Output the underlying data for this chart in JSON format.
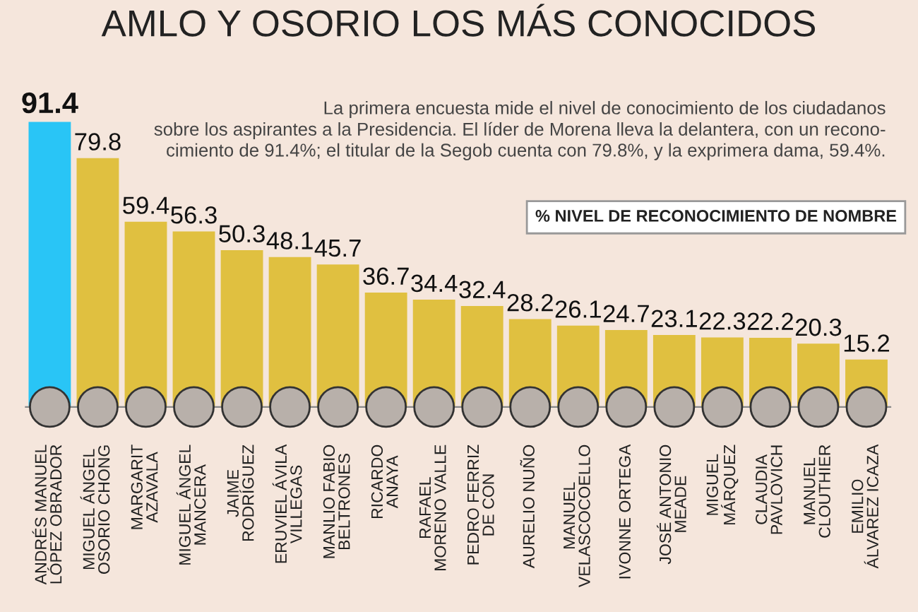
{
  "chart_data": {
    "type": "bar",
    "title": "AMLO Y OSORIO LOS MÁS CONOCIDOS",
    "subtitle": "La primera encuesta mide el nivel de conocimiento de los ciudadanos\nsobre los aspirantes a la Presidencia. El líder de Morena lleva la delantera, con un recono-\ncimiento de 91.4%; el titular de la Segob cuenta con 79.8%, y la exprimera dama, 59.4%.",
    "annotations": [
      "% NIVEL DE RECONOCIMIENTO DE NOMBRE"
    ],
    "categories": [
      "ANDRÉS MANUEL\nLÓPEZ OBRADOR",
      "MIGUEL ÁNGEL\nOSORIO CHONG",
      "MARGARIT\nAZAVALA",
      "MIGUEL ÁNGEL\nMANCERA",
      "JAIME\nRODRÍGUEZ",
      "ERUVIEL ÁVILA\nVILLEGAS",
      "MANLIO FABIO\nBELTRONES",
      "RICARDO\nANAYA",
      "RAFAEL\nMORENO VALLE",
      "PEDRO FERRIZ\nDE CON",
      "AURELIO NUÑO",
      "MANUEL\nVELASCOCOELLO",
      "IVONNE ORTEGA",
      "JOSÉ ANTONIO\nMEADE",
      "MIGUEL\nMÁRQUEZ",
      "CLAUDIA\nPAVLOVICH",
      "MANUEL\nCLOUTHIER",
      "EMILIO\nÁLVAREZ ICAZA"
    ],
    "values": [
      91.4,
      79.8,
      59.4,
      56.3,
      50.3,
      48.1,
      45.7,
      36.7,
      34.4,
      32.4,
      28.2,
      26.1,
      24.7,
      23.1,
      22.3,
      22.2,
      20.3,
      15.2
    ],
    "colors": [
      "#29c5f6",
      "#e0c040",
      "#e0c040",
      "#e0c040",
      "#e0c040",
      "#e0c040",
      "#e0c040",
      "#e0c040",
      "#e0c040",
      "#e0c040",
      "#e0c040",
      "#e0c040",
      "#e0c040",
      "#e0c040",
      "#e0c040",
      "#e0c040",
      "#e0c040",
      "#e0c040"
    ],
    "data_labels": true
  }
}
